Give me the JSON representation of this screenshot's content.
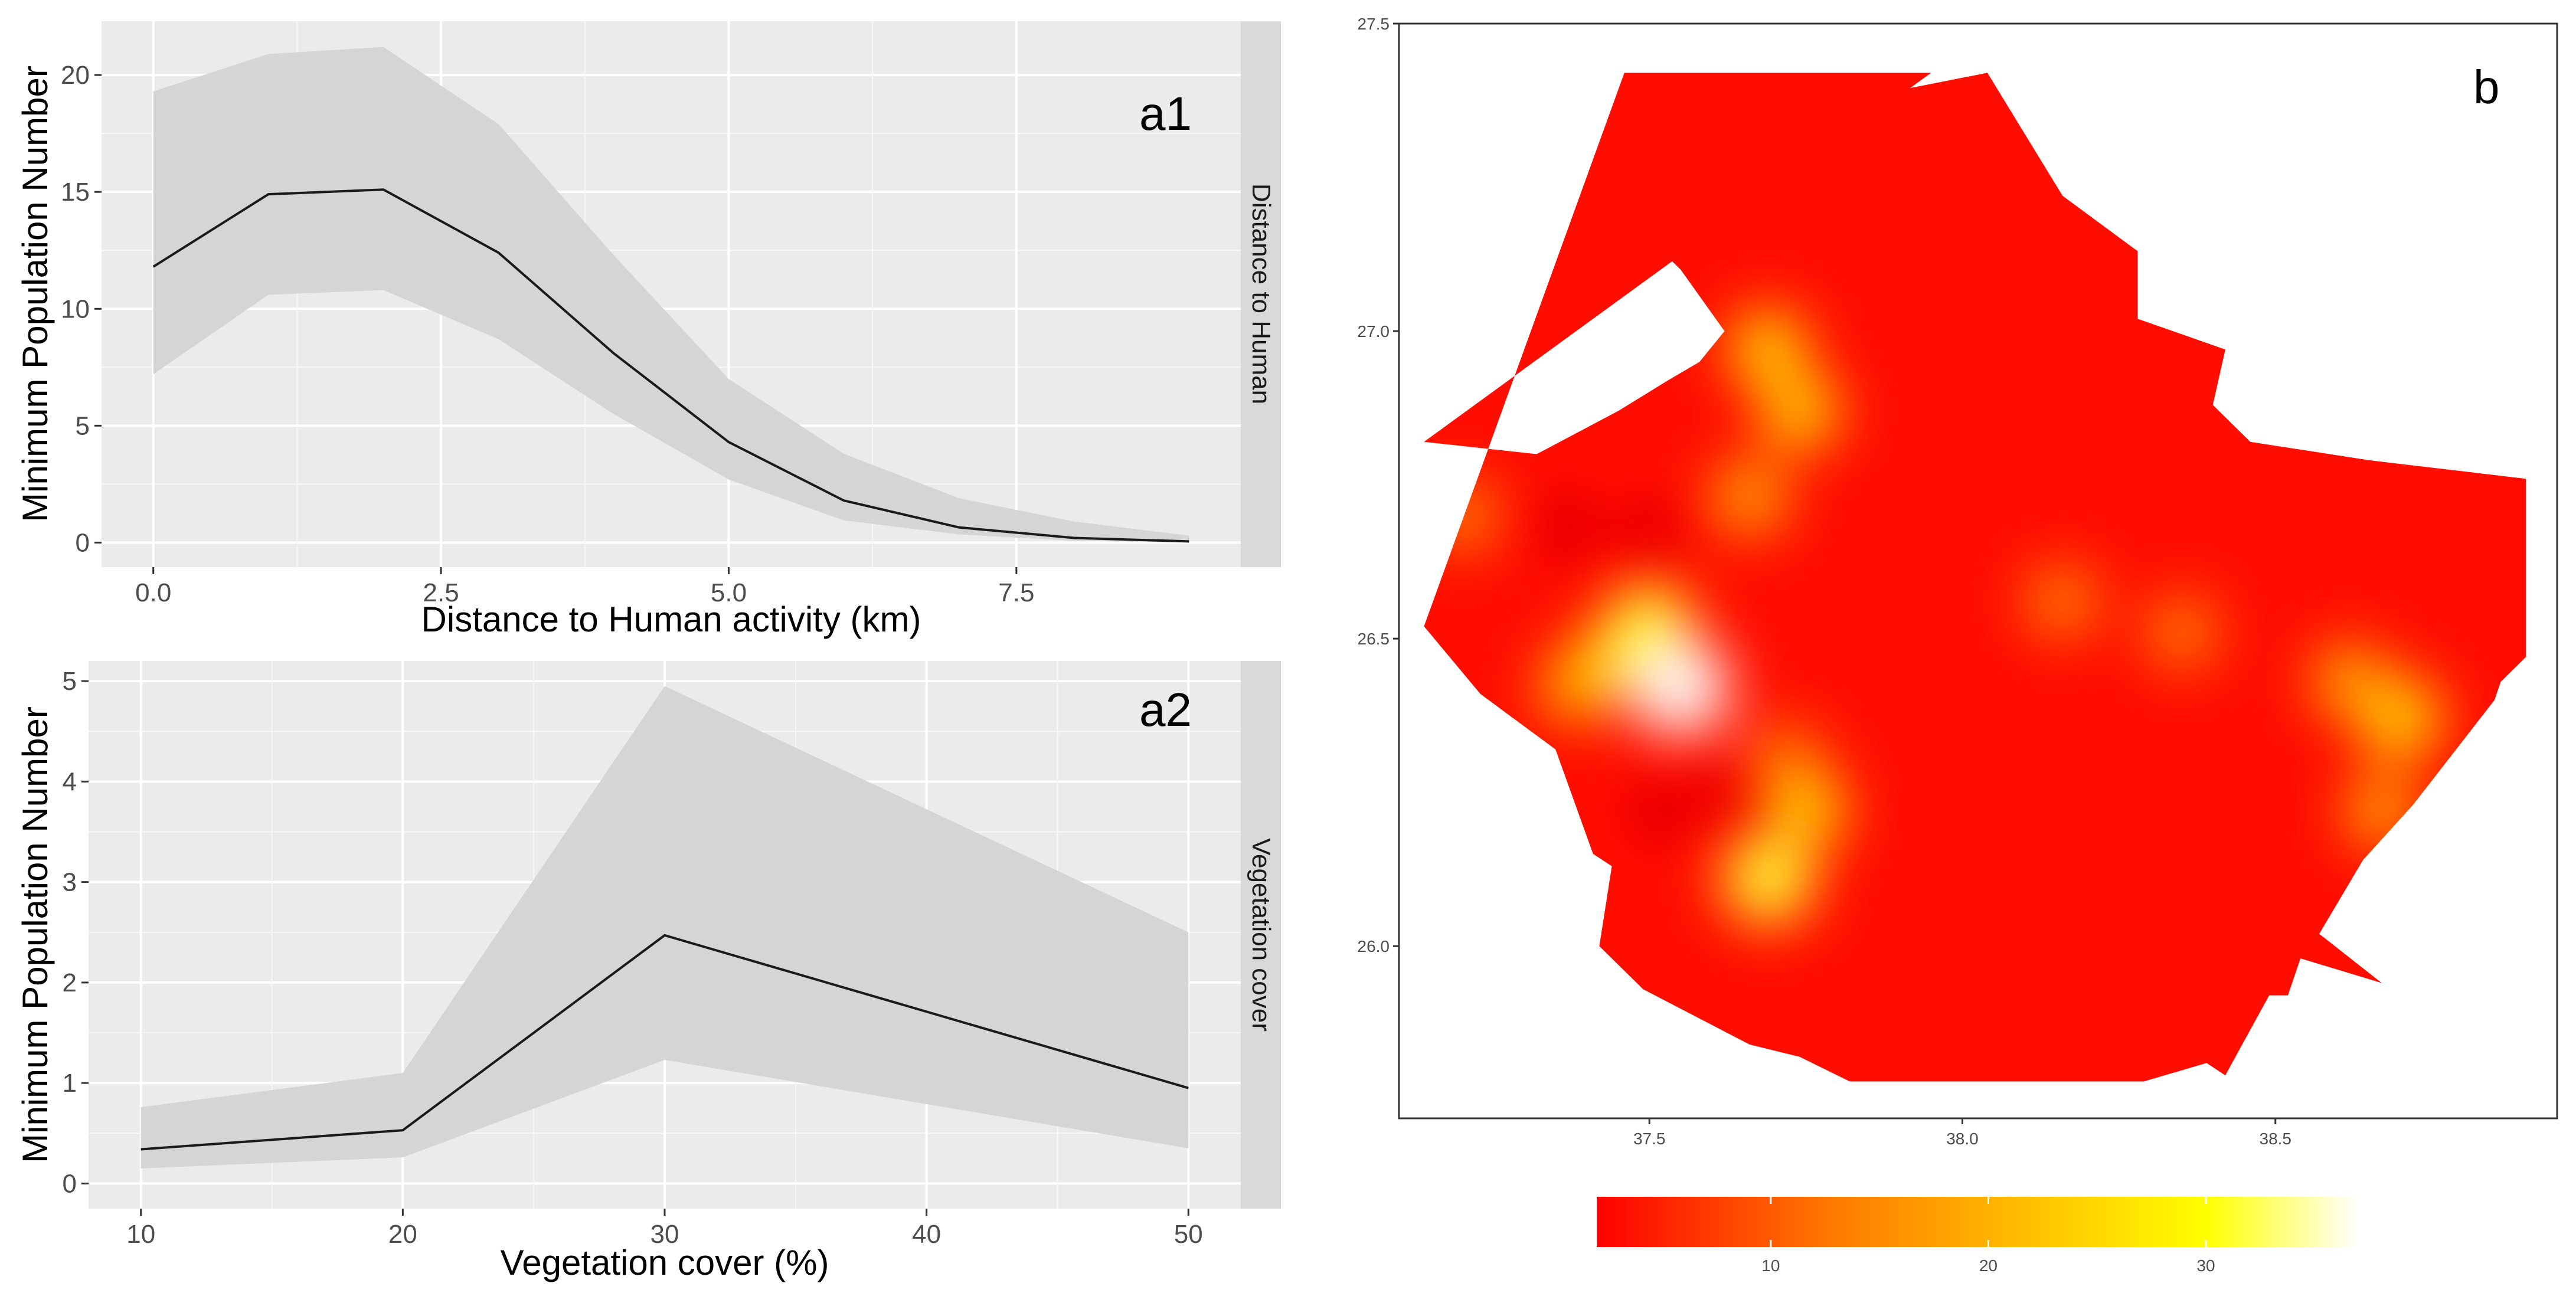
{
  "chart_data": [
    {
      "id": "a1",
      "type": "line",
      "panel_label": "a1",
      "facet_label": "Distance to Human",
      "xlabel": "Distance to Human activity (km)",
      "ylabel": "Minimum Population Number",
      "xlim": [
        -0.45,
        9.45
      ],
      "ylim": [
        -1.05,
        22.3
      ],
      "x_ticks": [
        0.0,
        2.5,
        5.0,
        7.5
      ],
      "x_tick_labels": [
        "0.0",
        "2.5",
        "5.0",
        "7.5"
      ],
      "y_ticks": [
        0,
        5,
        10,
        15,
        20
      ],
      "y_tick_labels": [
        "0",
        "5",
        "10",
        "15",
        "20"
      ],
      "x": [
        0,
        1,
        2,
        3,
        4,
        5,
        6,
        7,
        8,
        9
      ],
      "series": [
        {
          "name": "mean",
          "values": [
            11.8,
            14.9,
            15.1,
            12.4,
            8.1,
            4.3,
            1.8,
            0.65,
            0.2,
            0.05
          ]
        },
        {
          "name": "upper",
          "values": [
            19.3,
            20.9,
            21.2,
            17.9,
            12.3,
            7.0,
            3.8,
            1.9,
            0.9,
            0.3
          ]
        },
        {
          "name": "lower",
          "values": [
            7.2,
            10.6,
            10.8,
            8.7,
            5.5,
            2.7,
            0.95,
            0.35,
            0.08,
            0.0
          ]
        }
      ]
    },
    {
      "id": "a2",
      "type": "line",
      "panel_label": "a2",
      "facet_label": "Vegetation cover",
      "xlabel": "Vegetation cover (%)",
      "ylabel": "Minimum Population Number",
      "xlim": [
        8,
        52
      ],
      "ylim": [
        -0.25,
        5.2
      ],
      "x_ticks": [
        10,
        20,
        30,
        40,
        50
      ],
      "x_tick_labels": [
        "10",
        "20",
        "30",
        "40",
        "50"
      ],
      "y_ticks": [
        0,
        1,
        2,
        3,
        4,
        5
      ],
      "y_tick_labels": [
        "0",
        "1",
        "2",
        "3",
        "4",
        "5"
      ],
      "x": [
        10,
        20,
        30,
        50
      ],
      "series": [
        {
          "name": "mean",
          "values": [
            0.34,
            0.53,
            2.47,
            0.95
          ]
        },
        {
          "name": "upper",
          "values": [
            0.76,
            1.1,
            4.95,
            2.5
          ]
        },
        {
          "name": "lower",
          "values": [
            0.15,
            0.26,
            1.23,
            0.35
          ]
        }
      ]
    },
    {
      "id": "b",
      "type": "heatmap",
      "panel_label": "b",
      "xlim": [
        37.1,
        38.95
      ],
      "ylim": [
        25.72,
        27.5
      ],
      "x_ticks": [
        37.5,
        38.0,
        38.5
      ],
      "x_tick_labels": [
        "37.5",
        "38.0",
        "38.5"
      ],
      "y_ticks": [
        26.0,
        26.5,
        27.0,
        27.5
      ],
      "y_tick_labels": [
        "26.0",
        "26.5",
        "27.0",
        "27.5"
      ],
      "region_outline": [
        [
          37.46,
          27.42
        ],
        [
          37.95,
          27.42
        ],
        [
          37.14,
          26.82
        ],
        [
          37.32,
          26.8
        ],
        [
          37.45,
          26.87
        ],
        [
          37.53,
          26.92
        ],
        [
          37.58,
          26.95
        ],
        [
          37.62,
          27.0
        ],
        [
          37.55,
          27.1
        ],
        [
          37.5,
          27.15
        ],
        [
          37.45,
          27.2
        ],
        [
          37.44,
          27.3
        ],
        [
          38.04,
          27.42
        ],
        [
          38.16,
          27.22
        ],
        [
          38.28,
          27.13
        ],
        [
          38.28,
          27.02
        ],
        [
          38.42,
          26.97
        ],
        [
          38.4,
          26.88
        ],
        [
          38.46,
          26.82
        ],
        [
          38.65,
          26.79
        ],
        [
          38.9,
          26.76
        ],
        [
          38.9,
          26.47
        ],
        [
          38.86,
          26.43
        ],
        [
          38.85,
          26.4
        ],
        [
          38.72,
          26.23
        ],
        [
          38.64,
          26.14
        ],
        [
          38.57,
          26.02
        ],
        [
          38.67,
          25.94
        ],
        [
          38.54,
          25.98
        ],
        [
          38.52,
          25.92
        ],
        [
          38.49,
          25.92
        ],
        [
          38.42,
          25.79
        ],
        [
          38.39,
          25.81
        ],
        [
          38.29,
          25.78
        ],
        [
          37.82,
          25.78
        ],
        [
          37.74,
          25.82
        ],
        [
          37.66,
          25.84
        ],
        [
          37.49,
          25.93
        ],
        [
          37.42,
          26.0
        ],
        [
          37.44,
          26.13
        ],
        [
          37.41,
          26.15
        ],
        [
          37.35,
          26.32
        ],
        [
          37.23,
          26.41
        ],
        [
          37.14,
          26.52
        ]
      ],
      "hotspots": [
        {
          "lon": 37.55,
          "lat": 26.42,
          "value": 36
        },
        {
          "lon": 37.5,
          "lat": 26.52,
          "value": 29
        },
        {
          "lon": 37.44,
          "lat": 26.46,
          "value": 24
        },
        {
          "lon": 37.69,
          "lat": 26.11,
          "value": 31
        },
        {
          "lon": 37.75,
          "lat": 26.22,
          "value": 22
        },
        {
          "lon": 37.69,
          "lat": 26.97,
          "value": 22
        },
        {
          "lon": 37.74,
          "lat": 26.87,
          "value": 21
        },
        {
          "lon": 37.66,
          "lat": 26.73,
          "value": 18
        },
        {
          "lon": 38.7,
          "lat": 26.37,
          "value": 24
        },
        {
          "lon": 38.62,
          "lat": 26.43,
          "value": 19
        },
        {
          "lon": 38.67,
          "lat": 26.22,
          "value": 17
        },
        {
          "lon": 38.16,
          "lat": 26.56,
          "value": 14
        },
        {
          "lon": 38.35,
          "lat": 26.51,
          "value": 13
        },
        {
          "lon": 37.2,
          "lat": 26.7,
          "value": 14
        },
        {
          "lon": 37.38,
          "lat": 26.42,
          "value": 17
        },
        {
          "lon": 37.72,
          "lat": 26.3,
          "value": 15
        }
      ],
      "cold_spots": [
        {
          "lon": 37.52,
          "lat": 26.22
        },
        {
          "lon": 37.68,
          "lat": 26.22
        },
        {
          "lon": 37.37,
          "lat": 26.68
        },
        {
          "lon": 37.5,
          "lat": 26.67
        },
        {
          "lon": 37.6,
          "lat": 26.25
        }
      ],
      "colorbar": {
        "ticks": [
          10,
          20,
          30
        ],
        "tick_labels": [
          "10",
          "20",
          "30"
        ],
        "range": [
          2,
          37
        ],
        "colors": [
          "#ff0000",
          "#ff7a00",
          "#ffff00",
          "#ffffff"
        ]
      }
    }
  ]
}
